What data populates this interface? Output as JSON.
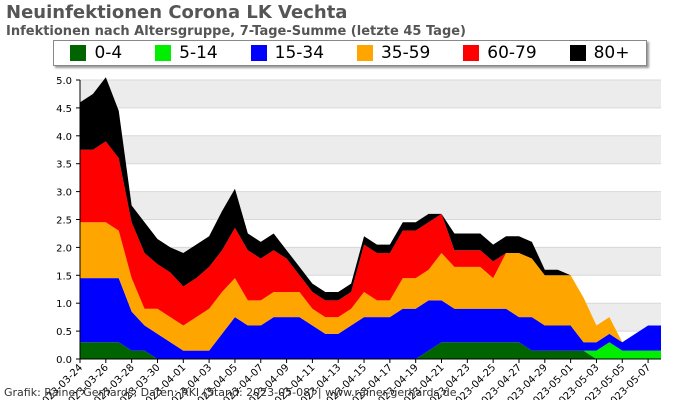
{
  "chart_data": {
    "type": "area",
    "stacked": true,
    "title": "Neuinfektionen Corona LK Vechta",
    "subtitle": "Infektionen nach Altersgruppe, 7-Tage-Summe (letzte 45 Tage)",
    "xlabel": "",
    "ylabel": "",
    "ylim": [
      0,
      5.0
    ],
    "yticks": [
      "0.0",
      "0.5",
      "1.0",
      "1.5",
      "2.0",
      "2.5",
      "3.0",
      "3.5",
      "4.0",
      "4.5",
      "5.0"
    ],
    "grid": "horizontal",
    "legend_position": "top",
    "x": [
      "2023-03-24",
      "2023-03-25",
      "2023-03-26",
      "2023-03-27",
      "2023-03-28",
      "2023-03-29",
      "2023-03-30",
      "2023-03-31",
      "2023-04-01",
      "2023-04-02",
      "2023-04-03",
      "2023-04-04",
      "2023-04-05",
      "2023-04-06",
      "2023-04-07",
      "2023-04-08",
      "2023-04-09",
      "2023-04-10",
      "2023-04-11",
      "2023-04-12",
      "2023-04-13",
      "2023-04-14",
      "2023-04-15",
      "2023-04-16",
      "2023-04-17",
      "2023-04-18",
      "2023-04-19",
      "2023-04-20",
      "2023-04-21",
      "2023-04-22",
      "2023-04-23",
      "2023-04-24",
      "2023-04-25",
      "2023-04-26",
      "2023-04-27",
      "2023-04-28",
      "2023-04-29",
      "2023-04-30",
      "2023-05-01",
      "2023-05-02",
      "2023-05-03",
      "2023-05-04",
      "2023-05-05",
      "2023-05-06",
      "2023-05-07",
      "2023-05-08"
    ],
    "xticks": [
      "2023-03-24",
      "2023-03-26",
      "2023-03-28",
      "2023-03-30",
      "2023-04-01",
      "2023-04-03",
      "2023-04-05",
      "2023-04-07",
      "2023-04-09",
      "2023-04-11",
      "2023-04-13",
      "2023-04-15",
      "2023-04-17",
      "2023-04-19",
      "2023-04-21",
      "2023-04-23",
      "2023-04-25",
      "2023-04-27",
      "2023-04-29",
      "2023-05-01",
      "2023-05-03",
      "2023-05-05",
      "2023-05-07"
    ],
    "series": [
      {
        "name": "0-4",
        "color": "#006400",
        "values": [
          0.3,
          0.3,
          0.3,
          0.3,
          0.15,
          0.15,
          0.0,
          0.0,
          0.0,
          0.0,
          0.0,
          0.0,
          0.0,
          0.0,
          0.0,
          0.0,
          0.0,
          0.0,
          0.0,
          0.0,
          0.0,
          0.0,
          0.0,
          0.0,
          0.0,
          0.0,
          0.0,
          0.15,
          0.3,
          0.3,
          0.3,
          0.3,
          0.3,
          0.3,
          0.3,
          0.15,
          0.15,
          0.15,
          0.15,
          0.15,
          0.0,
          0.0,
          0.0,
          0.0,
          0.0,
          0.0
        ]
      },
      {
        "name": "5-14",
        "color": "#00ee00",
        "values": [
          0.0,
          0.0,
          0.0,
          0.0,
          0.0,
          0.0,
          0.0,
          0.0,
          0.0,
          0.0,
          0.0,
          0.0,
          0.0,
          0.0,
          0.0,
          0.0,
          0.0,
          0.0,
          0.0,
          0.0,
          0.0,
          0.0,
          0.0,
          0.0,
          0.0,
          0.0,
          0.0,
          0.0,
          0.0,
          0.0,
          0.0,
          0.0,
          0.0,
          0.0,
          0.0,
          0.0,
          0.0,
          0.0,
          0.0,
          0.0,
          0.15,
          0.3,
          0.15,
          0.15,
          0.15,
          0.15
        ]
      },
      {
        "name": "15-34",
        "color": "#0000ff",
        "values": [
          1.15,
          1.15,
          1.15,
          1.15,
          0.7,
          0.45,
          0.45,
          0.3,
          0.15,
          0.15,
          0.15,
          0.45,
          0.75,
          0.6,
          0.6,
          0.75,
          0.75,
          0.75,
          0.6,
          0.45,
          0.45,
          0.6,
          0.75,
          0.75,
          0.75,
          0.9,
          0.9,
          0.9,
          0.75,
          0.6,
          0.6,
          0.6,
          0.6,
          0.6,
          0.45,
          0.6,
          0.45,
          0.45,
          0.45,
          0.15,
          0.15,
          0.15,
          0.15,
          0.3,
          0.45,
          0.45
        ]
      },
      {
        "name": "35-59",
        "color": "#ffa500",
        "values": [
          1.0,
          1.0,
          1.0,
          0.85,
          0.6,
          0.3,
          0.45,
          0.45,
          0.45,
          0.6,
          0.75,
          0.75,
          0.7,
          0.45,
          0.45,
          0.45,
          0.45,
          0.45,
          0.3,
          0.3,
          0.3,
          0.3,
          0.45,
          0.3,
          0.3,
          0.55,
          0.55,
          0.55,
          0.85,
          0.75,
          0.75,
          0.75,
          0.55,
          1.0,
          1.15,
          1.05,
          0.9,
          0.9,
          0.9,
          0.8,
          0.3,
          0.3,
          0.0,
          0.0,
          0.0,
          0.0
        ]
      },
      {
        "name": "60-79",
        "color": "#ff0000",
        "values": [
          1.3,
          1.3,
          1.45,
          1.3,
          1.0,
          1.0,
          0.8,
          0.8,
          0.7,
          0.7,
          0.75,
          0.75,
          0.9,
          0.9,
          0.75,
          0.75,
          0.6,
          0.3,
          0.3,
          0.3,
          0.3,
          0.3,
          0.85,
          0.85,
          0.85,
          0.85,
          0.85,
          0.85,
          0.7,
          0.3,
          0.3,
          0.3,
          0.3,
          0.0,
          0.0,
          0.0,
          0.0,
          0.0,
          0.0,
          0.0,
          0.0,
          0.0,
          0.0,
          0.0,
          0.0,
          0.0
        ]
      },
      {
        "name": "80+",
        "color": "#000000",
        "values": [
          0.85,
          1.0,
          1.15,
          0.85,
          0.3,
          0.55,
          0.45,
          0.45,
          0.6,
          0.6,
          0.55,
          0.7,
          0.7,
          0.3,
          0.3,
          0.3,
          0.15,
          0.15,
          0.15,
          0.15,
          0.15,
          0.15,
          0.15,
          0.15,
          0.15,
          0.15,
          0.15,
          0.15,
          0.0,
          0.3,
          0.3,
          0.3,
          0.3,
          0.3,
          0.3,
          0.3,
          0.1,
          0.1,
          0.0,
          0.0,
          0.0,
          0.0,
          0.0,
          0.0,
          0.0,
          0.0
        ]
      }
    ]
  },
  "credit": "Grafik: Rainer Gerhards, Daten: RKI (Stand: 2023-05-08) | www.rainer-gerhards.de"
}
